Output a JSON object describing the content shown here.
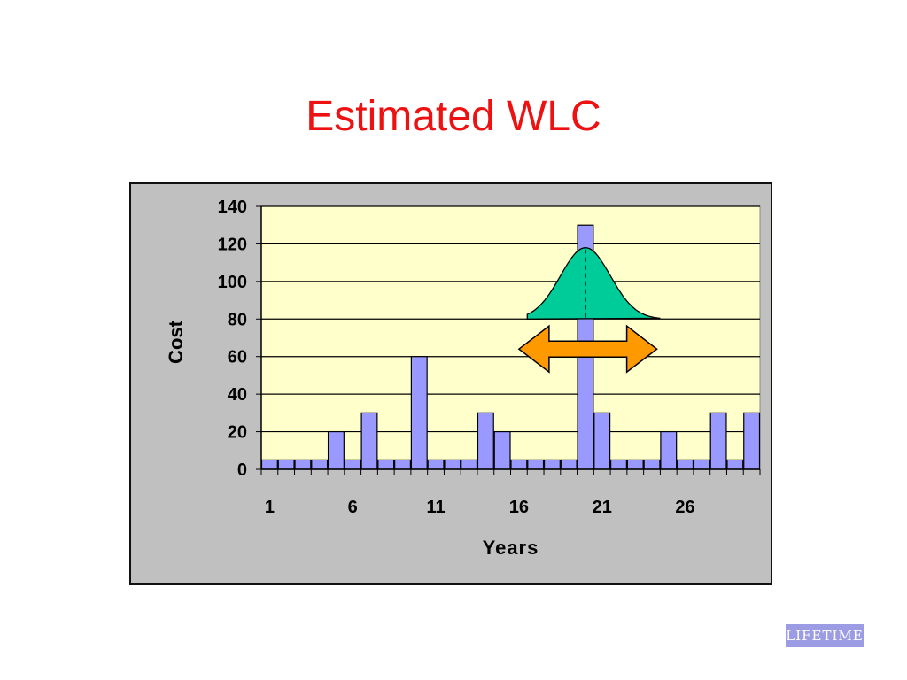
{
  "slide": {
    "title": "Estimated WLC",
    "logo_text": "LIFETIME"
  },
  "colors": {
    "title": "#ee1111",
    "bar_fill": "#9999ff",
    "plot_bg": "#ffffcc",
    "frame_bg": "#c0c0c0",
    "curve_fill": "#00cc99",
    "arrow_fill": "#ff9900",
    "logo_bg": "#9c9ce4"
  },
  "chart_data": {
    "type": "bar",
    "title": "",
    "xlabel": "Years",
    "ylabel": "Cost",
    "ylim": [
      0,
      140
    ],
    "yticks": [
      0,
      20,
      40,
      60,
      80,
      100,
      120,
      140
    ],
    "xtick_labels": [
      "1",
      "6",
      "11",
      "16",
      "21",
      "26"
    ],
    "grid": true,
    "categories": [
      1,
      2,
      3,
      4,
      5,
      6,
      7,
      8,
      9,
      10,
      11,
      12,
      13,
      14,
      15,
      16,
      17,
      18,
      19,
      20,
      21,
      22,
      23,
      24,
      25,
      26,
      27,
      28,
      29,
      30
    ],
    "values": [
      5,
      5,
      5,
      5,
      20,
      5,
      30,
      5,
      5,
      60,
      5,
      5,
      5,
      30,
      20,
      5,
      5,
      5,
      5,
      130,
      30,
      5,
      5,
      5,
      20,
      5,
      5,
      30,
      5,
      30
    ],
    "annotations": {
      "distribution_peak_year": 20,
      "distribution_peak_value": 118,
      "distribution_base_value": 80,
      "distribution_span_years": [
        16.5,
        24.5
      ],
      "arrow_value": 64,
      "arrow_span_years": [
        16,
        24.3
      ],
      "dashed_line_year": 20
    }
  }
}
